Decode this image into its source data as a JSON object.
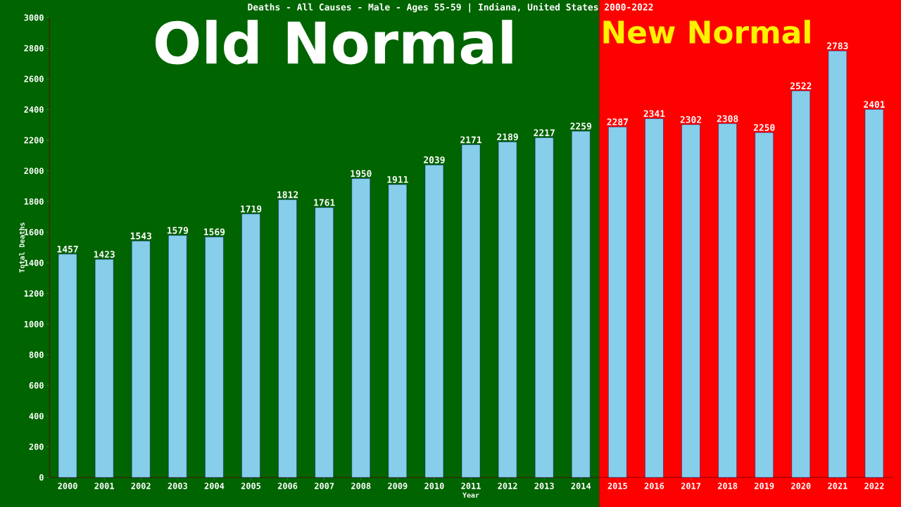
{
  "chart_data": {
    "type": "bar",
    "title": "Deaths - All Causes - Male - Ages 55-59 | Indiana, United States 2000-2022",
    "xlabel": "Year",
    "ylabel": "Total Deaths",
    "categories": [
      "2000",
      "2001",
      "2002",
      "2003",
      "2004",
      "2005",
      "2006",
      "2007",
      "2008",
      "2009",
      "2010",
      "2011",
      "2012",
      "2013",
      "2014",
      "2015",
      "2016",
      "2017",
      "2018",
      "2019",
      "2020",
      "2021",
      "2022"
    ],
    "values": [
      1457,
      1423,
      1543,
      1579,
      1569,
      1719,
      1812,
      1761,
      1950,
      1911,
      2039,
      2171,
      2189,
      2217,
      2259,
      2287,
      2341,
      2302,
      2308,
      2250,
      2522,
      2783,
      2401
    ],
    "color": "#87ceeb",
    "data_labels": true,
    "grid": false,
    "ylim": [
      0,
      3000
    ],
    "yticks": [
      0,
      200,
      400,
      600,
      800,
      1000,
      1200,
      1400,
      1600,
      1800,
      2000,
      2200,
      2400,
      2600,
      2800,
      3000
    ],
    "bands": [
      {
        "axis": "x",
        "from": "2000",
        "to": "2014",
        "label": "Old Normal",
        "color": "#006400"
      },
      {
        "axis": "x",
        "from": "2015",
        "to": "2022",
        "label": "New Normal",
        "color": "#ff0000"
      }
    ]
  }
}
